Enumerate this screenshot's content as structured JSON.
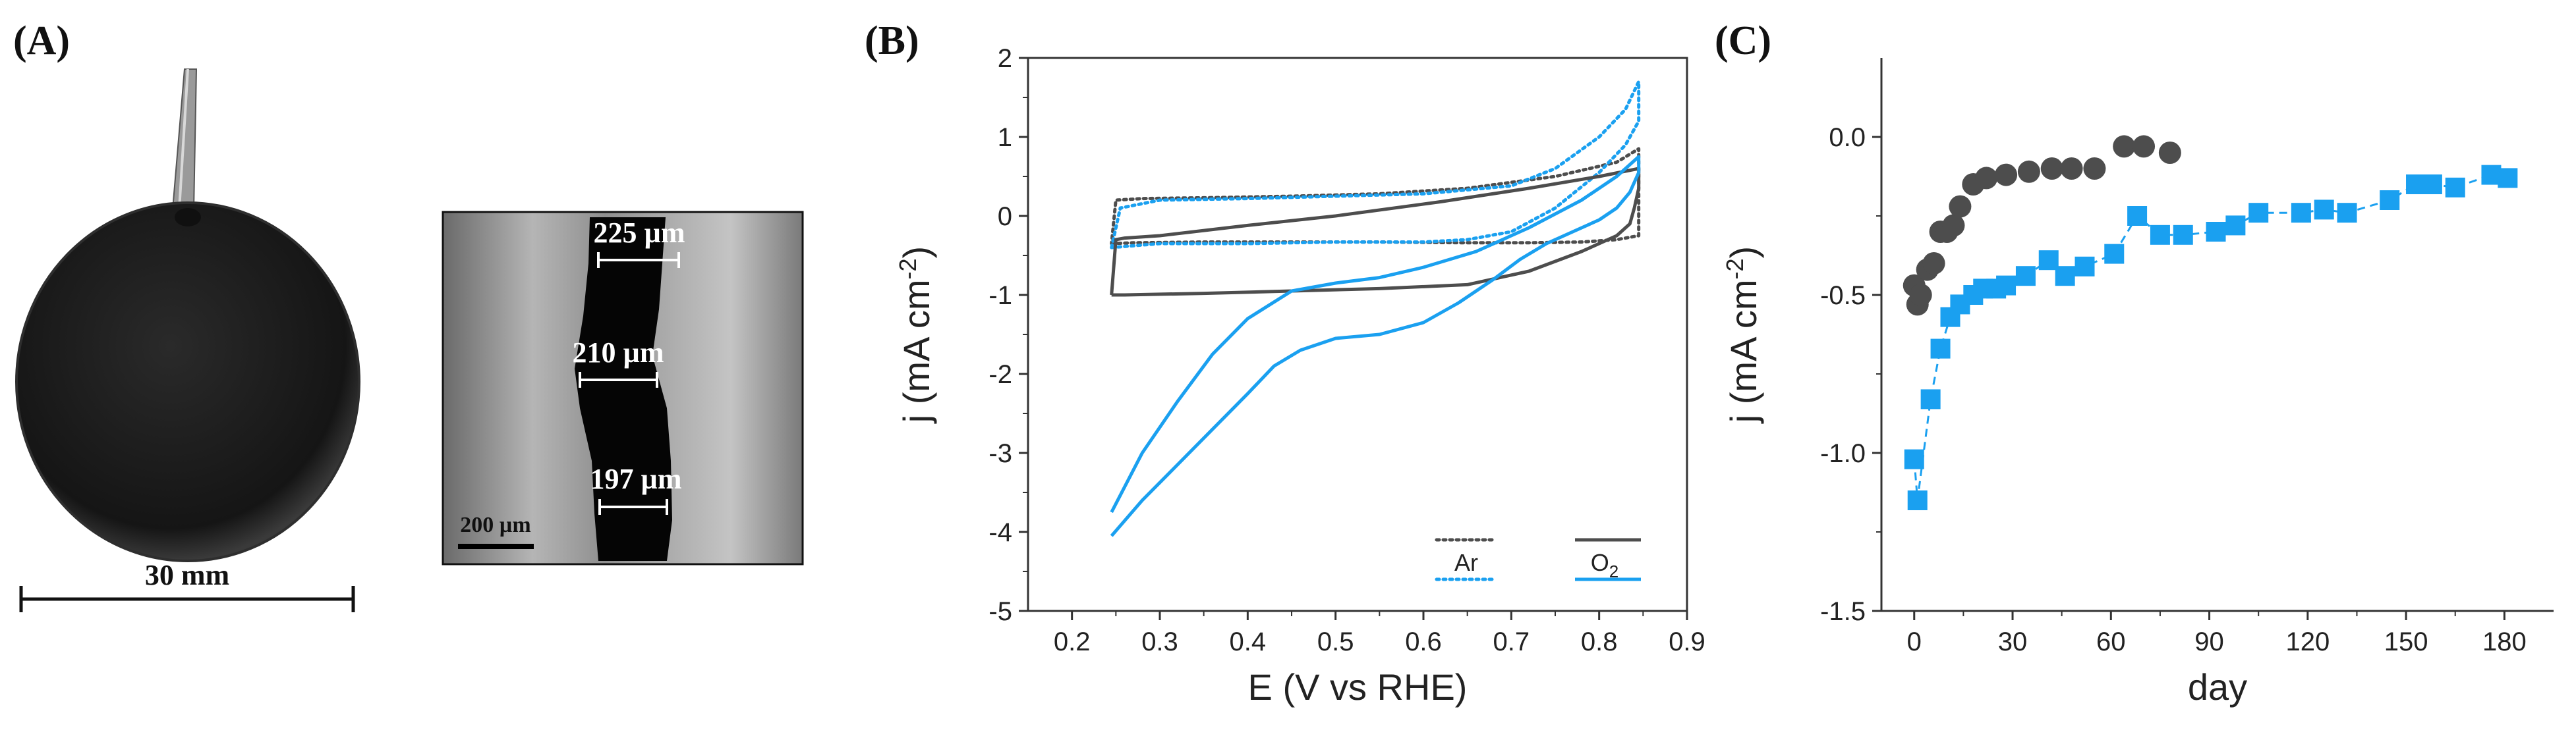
{
  "colors": {
    "ar": "#4d4d4d",
    "o2": "#1aa0f0",
    "sphere": "#1c1c1c",
    "sem_bg": "#8c8c8c"
  },
  "panels": {
    "a": {
      "label": "(A)",
      "scale_text": "30 mm",
      "sem": {
        "measurements": [
          "225 µm",
          "210 µm",
          "197 µm"
        ],
        "scale_text": "200 µm"
      }
    },
    "b": {
      "label": "(B)"
    },
    "c": {
      "label": "(C)"
    }
  },
  "chart_data": [
    {
      "type": "line",
      "panel": "B",
      "xlabel": "E (V vs RHE)",
      "ylabel_main": "j (mA cm",
      "ylabel_sup": "-2",
      "ylabel_tail": ")",
      "xlim": [
        0.15,
        0.9
      ],
      "ylim": [
        -5,
        2
      ],
      "xticks": [
        0.2,
        0.3,
        0.4,
        0.5,
        0.6,
        0.7,
        0.8,
        0.9
      ],
      "yticks": [
        -5,
        -4,
        -3,
        -2,
        -1,
        0,
        1,
        2
      ],
      "legend": {
        "placement": "bottom-right",
        "entries": [
          {
            "label": "Ar",
            "style": "dotted"
          },
          {
            "label": "O",
            "sub": "2",
            "style": "solid"
          }
        ]
      },
      "series": [
        {
          "name": "Ar dark",
          "color": "#4d4d4d",
          "style": "dotted",
          "x": [
            0.245,
            0.27,
            0.35,
            0.45,
            0.55,
            0.65,
            0.72,
            0.78,
            0.82,
            0.845,
            0.845,
            0.82,
            0.75,
            0.65,
            0.55,
            0.45,
            0.35,
            0.28,
            0.25,
            0.245
          ],
          "y": [
            -0.35,
            -0.34,
            -0.33,
            -0.33,
            -0.33,
            -0.34,
            -0.34,
            -0.33,
            -0.3,
            -0.25,
            0.85,
            0.68,
            0.5,
            0.35,
            0.28,
            0.25,
            0.23,
            0.22,
            0.2,
            -0.35
          ]
        },
        {
          "name": "Ar blue",
          "color": "#1aa0f0",
          "style": "dotted",
          "x": [
            0.245,
            0.3,
            0.4,
            0.5,
            0.6,
            0.65,
            0.7,
            0.75,
            0.8,
            0.83,
            0.845,
            0.845,
            0.83,
            0.8,
            0.75,
            0.7,
            0.6,
            0.5,
            0.4,
            0.3,
            0.255,
            0.245
          ],
          "y": [
            -0.4,
            -0.35,
            -0.35,
            -0.33,
            -0.33,
            -0.3,
            -0.2,
            0.1,
            0.55,
            0.9,
            1.2,
            1.7,
            1.35,
            1.0,
            0.6,
            0.38,
            0.28,
            0.25,
            0.22,
            0.2,
            0.1,
            -0.4
          ]
        },
        {
          "name": "O2 dark",
          "color": "#4d4d4d",
          "style": "solid",
          "x": [
            0.245,
            0.26,
            0.35,
            0.45,
            0.55,
            0.65,
            0.72,
            0.78,
            0.82,
            0.835,
            0.84,
            0.845,
            0.845,
            0.8,
            0.72,
            0.62,
            0.5,
            0.4,
            0.3,
            0.26,
            0.25,
            0.245
          ],
          "y": [
            -1.0,
            -1.0,
            -0.98,
            -0.95,
            -0.92,
            -0.87,
            -0.7,
            -0.45,
            -0.25,
            -0.1,
            0.1,
            0.35,
            0.6,
            0.5,
            0.35,
            0.18,
            0.0,
            -0.12,
            -0.25,
            -0.28,
            -0.3,
            -1.0
          ]
        },
        {
          "name": "O2 blue",
          "color": "#1aa0f0",
          "style": "solid",
          "x": [
            0.245,
            0.28,
            0.32,
            0.36,
            0.4,
            0.43,
            0.46,
            0.5,
            0.55,
            0.6,
            0.64,
            0.68,
            0.71,
            0.74,
            0.77,
            0.8,
            0.82,
            0.835,
            0.845,
            0.845,
            0.82,
            0.78,
            0.72,
            0.66,
            0.6,
            0.55,
            0.5,
            0.45,
            0.4,
            0.36,
            0.32,
            0.28,
            0.245
          ],
          "y": [
            -4.05,
            -3.6,
            -3.15,
            -2.7,
            -2.25,
            -1.9,
            -1.7,
            -1.55,
            -1.5,
            -1.35,
            -1.1,
            -0.8,
            -0.55,
            -0.35,
            -0.2,
            -0.05,
            0.1,
            0.3,
            0.55,
            0.75,
            0.5,
            0.2,
            -0.15,
            -0.45,
            -0.65,
            -0.78,
            -0.85,
            -0.95,
            -1.3,
            -1.75,
            -2.35,
            -3.0,
            -3.75
          ]
        }
      ]
    },
    {
      "type": "scatter",
      "panel": "C",
      "xlabel": "day",
      "ylabel_main": "j (mA cm",
      "ylabel_sup": "-2",
      "ylabel_tail": ")",
      "xlim": [
        -10,
        195
      ],
      "ylim": [
        -1.5,
        0.25
      ],
      "xticks": [
        0,
        30,
        60,
        90,
        120,
        150,
        180
      ],
      "yticks": [
        -1.5,
        -1.0,
        -0.5,
        0.0
      ],
      "ytick_labels": [
        "-1.5",
        "-1.0",
        "-0.5",
        "0.0"
      ],
      "series": [
        {
          "name": "dark circles",
          "marker": "circle",
          "color": "#4d4d4d",
          "x": [
            0,
            1,
            2,
            4,
            6,
            8,
            10,
            12,
            14,
            18,
            22,
            28,
            35,
            42,
            48,
            55,
            64,
            70,
            78
          ],
          "y": [
            -0.47,
            -0.53,
            -0.5,
            -0.42,
            -0.4,
            -0.3,
            -0.3,
            -0.28,
            -0.22,
            -0.15,
            -0.13,
            -0.12,
            -0.11,
            -0.1,
            -0.1,
            -0.1,
            -0.03,
            -0.03,
            -0.05
          ]
        },
        {
          "name": "blue squares",
          "marker": "square",
          "color": "#1aa0f0",
          "dashed": true,
          "x": [
            0,
            1,
            5,
            8,
            11,
            14,
            18,
            21,
            25,
            28,
            34,
            41,
            46,
            52,
            61,
            68,
            75,
            82,
            92,
            98,
            105,
            118,
            125,
            132,
            145,
            153,
            158,
            165,
            176,
            181
          ],
          "y": [
            -1.02,
            -1.15,
            -0.83,
            -0.67,
            -0.57,
            -0.53,
            -0.5,
            -0.48,
            -0.48,
            -0.47,
            -0.44,
            -0.39,
            -0.44,
            -0.41,
            -0.37,
            -0.25,
            -0.31,
            -0.31,
            -0.3,
            -0.28,
            -0.24,
            -0.24,
            -0.23,
            -0.24,
            -0.2,
            -0.15,
            -0.15,
            -0.16,
            -0.12,
            -0.13
          ]
        }
      ]
    }
  ]
}
